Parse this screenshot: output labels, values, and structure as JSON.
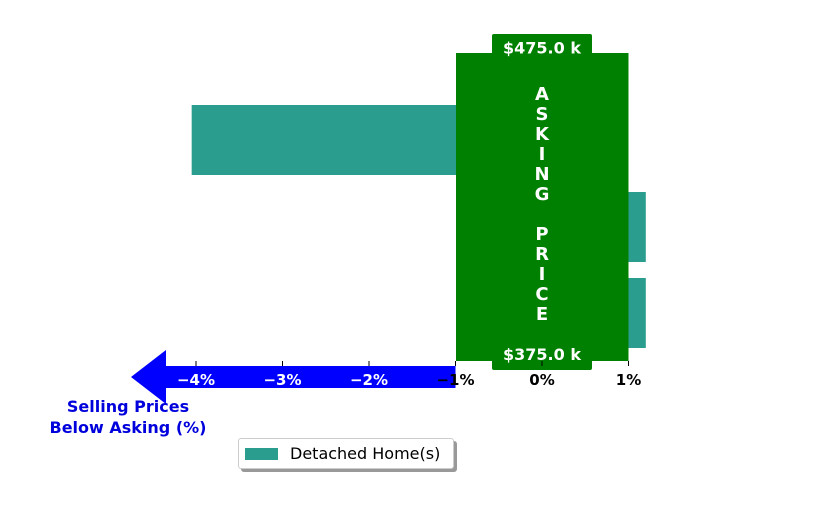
{
  "chart_data": {
    "type": "bar",
    "orientation": "horizontal",
    "series": [
      {
        "name": "Detached Home(s)",
        "values": [
          -4.05,
          1.2,
          1.2
        ],
        "color": "#2a9d8f"
      }
    ],
    "xlim": [
      -4.2,
      1.25
    ],
    "ticks": [
      {
        "value": -4,
        "label": "−4%"
      },
      {
        "value": -3,
        "label": "−3%"
      },
      {
        "value": -2,
        "label": "−2%"
      },
      {
        "value": -1,
        "label": "−1%"
      },
      {
        "value": 0,
        "label": "0%"
      },
      {
        "value": 1,
        "label": "1%"
      }
    ],
    "asking_price": {
      "label": "ASKING PRICE",
      "top_value": "$475.0 k",
      "bottom_value": "$375.0 k",
      "range": [
        -1,
        1
      ],
      "color": "#008000"
    },
    "below_asking_label": [
      "Selling Prices",
      "Below Asking (%)"
    ],
    "arrow_color": "#0000ff",
    "legend_position": "bottom-center",
    "grid": false
  }
}
